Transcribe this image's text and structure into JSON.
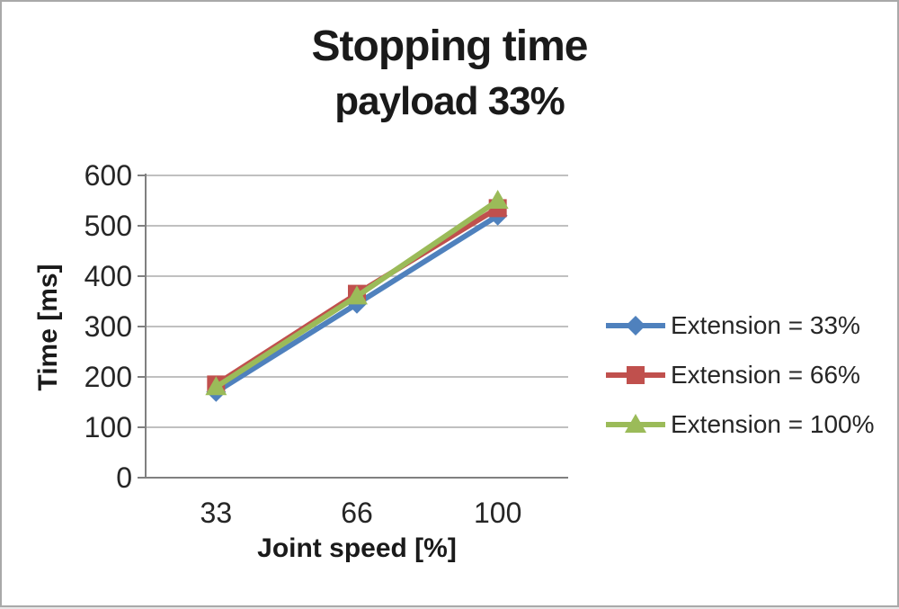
{
  "frame": {
    "background": "#ffffff",
    "border_color": "#a9a9a9"
  },
  "chart_data": {
    "type": "line",
    "title": "Stopping time",
    "subtitle": "payload 33%",
    "xlabel": "Joint speed [%]",
    "ylabel": "Time [ms]",
    "categories": [
      "33",
      "66",
      "100"
    ],
    "ylim": [
      0,
      600
    ],
    "yticks": [
      0,
      100,
      200,
      300,
      400,
      500,
      600
    ],
    "grid": true,
    "legend_position": "right",
    "series": [
      {
        "name": "Extension = 33%",
        "color": "#4f81bd",
        "marker": "diamond",
        "values": [
          170,
          345,
          520
        ]
      },
      {
        "name": "Extension = 66%",
        "color": "#c0504d",
        "marker": "square",
        "values": [
          185,
          365,
          535
        ]
      },
      {
        "name": "Extension = 100%",
        "color": "#9bbb59",
        "marker": "triangle",
        "values": [
          180,
          360,
          550
        ]
      }
    ],
    "colors": {
      "grid": "#ababab",
      "axis": "#808080",
      "tick_text": "#262626",
      "title_text": "#1a1a1a"
    }
  }
}
